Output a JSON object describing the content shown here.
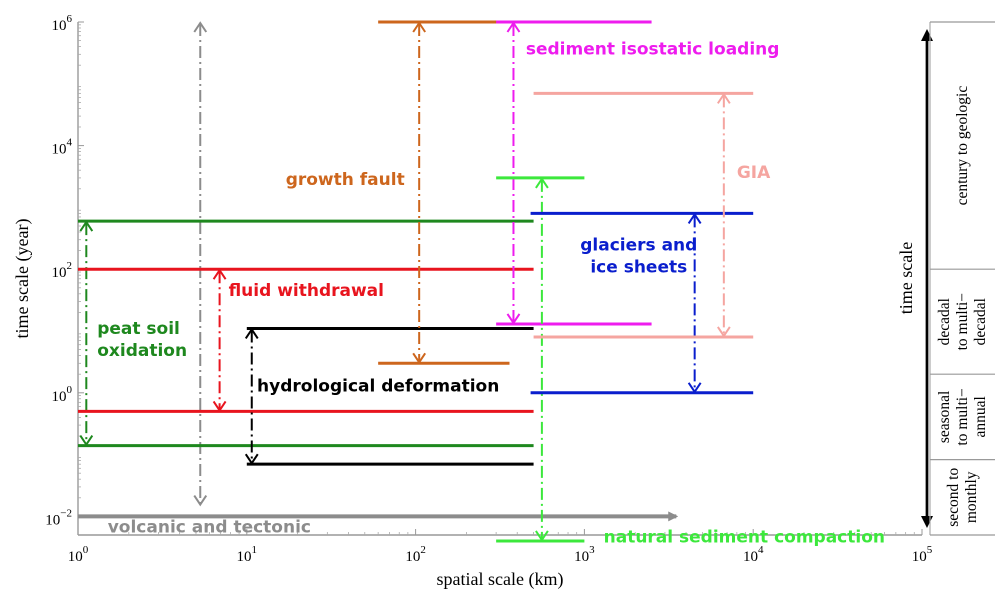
{
  "chart_data": {
    "type": "range",
    "xlabel": "spatial scale (km)",
    "ylabel": "time scale (year)",
    "x_scale": "log",
    "y_scale": "log",
    "xlim": [
      1,
      100000
    ],
    "ylim": [
      0.005,
      1000000
    ],
    "x_ticks": [
      {
        "value": 1,
        "base": "10",
        "exp": "0"
      },
      {
        "value": 10,
        "base": "10",
        "exp": "1"
      },
      {
        "value": 100,
        "base": "10",
        "exp": "2"
      },
      {
        "value": 1000,
        "base": "10",
        "exp": "3"
      },
      {
        "value": 10000,
        "base": "10",
        "exp": "4"
      },
      {
        "value": 100000,
        "base": "10",
        "exp": "5"
      }
    ],
    "y_ticks": [
      {
        "value": 0.01,
        "base": "10",
        "exp": "−2"
      },
      {
        "value": 1,
        "base": "10",
        "exp": "0"
      },
      {
        "value": 100,
        "base": "10",
        "exp": "2"
      },
      {
        "value": 10000,
        "base": "10",
        "exp": "4"
      },
      {
        "value": 1000000,
        "base": "10",
        "exp": "6"
      }
    ],
    "grid": false,
    "processes": [
      {
        "name": "volcanic and tectonic",
        "color": "#8c8c8c",
        "t_range": [
          0.015,
          1000000
        ],
        "t_arrow_x": 5.3,
        "x_range": [
          1,
          3500
        ],
        "x_arrow": true,
        "label_xy": [
          1.5,
          0.0055
        ],
        "label_anchor": "start"
      },
      {
        "name": "peat soil oxidation",
        "color": "#1e881e",
        "t_range": [
          0.14,
          600
        ],
        "t_arrow_x": 1.12,
        "x_range": [
          1,
          500
        ],
        "label_xy": [
          1.3,
          9
        ],
        "label_anchor": "start",
        "two_line": [
          "peat soil",
          "oxidation"
        ]
      },
      {
        "name": "fluid withdrawal",
        "color": "#e8141e",
        "t_range": [
          0.5,
          100
        ],
        "t_arrow_x": 6.9,
        "x_range": [
          1,
          500
        ],
        "label_xy": [
          7.8,
          37
        ],
        "label_anchor": "start"
      },
      {
        "name": "hydrological deformation",
        "color": "#000000",
        "t_range": [
          0.07,
          11
        ],
        "t_arrow_x": 10.7,
        "x_range": [
          10,
          500
        ],
        "label_xy": [
          11.5,
          1.05
        ],
        "label_anchor": "start"
      },
      {
        "name": "growth fault",
        "color": "#cd661d",
        "t_range": [
          3,
          1000000
        ],
        "t_arrow_x": 105,
        "x_range": [
          60,
          360
        ],
        "label_xy": [
          17,
          2300
        ],
        "label_anchor": "start"
      },
      {
        "name": "sediment isostatic loading",
        "color": "#ee1cee",
        "t_range": [
          13,
          1000000
        ],
        "t_arrow_x": 380,
        "x_range": [
          300,
          2500
        ],
        "label_xy": [
          450,
          300000
        ],
        "label_anchor": "start"
      },
      {
        "name": "natural sediment compaction",
        "color": "#3ce83c",
        "t_range": [
          0.004,
          3000
        ],
        "t_arrow_x": 560,
        "x_range": [
          300,
          1000
        ],
        "label_xy": [
          1300,
          0.0038
        ],
        "label_anchor": "start"
      },
      {
        "name": "glaciers and ice sheets",
        "color": "#0a1ecd",
        "t_range": [
          1,
          800
        ],
        "t_arrow_x": 4500,
        "x_range": [
          480,
          10000
        ],
        "label_xy": [
          2100,
          200
        ],
        "label_anchor": "middle",
        "two_line": [
          "glaciers and",
          "ice sheets"
        ]
      },
      {
        "name": "GIA",
        "color": "#f5a5a0",
        "t_range": [
          8,
          70000
        ],
        "t_arrow_x": 6700,
        "x_range": [
          500,
          10000
        ],
        "label_xy": [
          8000,
          3000
        ],
        "label_anchor": "start"
      }
    ],
    "time_bands": {
      "title": "time scale",
      "bands": [
        {
          "label": [
            "second to",
            "monthly"
          ],
          "t_range": [
            0.005,
            0.083
          ]
        },
        {
          "label": [
            "seasonal",
            "to multi−",
            "annual"
          ],
          "t_range": [
            0.083,
            2
          ]
        },
        {
          "label": [
            "decadal",
            "to multi−",
            "decadal"
          ],
          "t_range": [
            2,
            100
          ]
        },
        {
          "label": [
            "century to geologic"
          ],
          "t_range": [
            100,
            1000000
          ]
        }
      ]
    }
  }
}
